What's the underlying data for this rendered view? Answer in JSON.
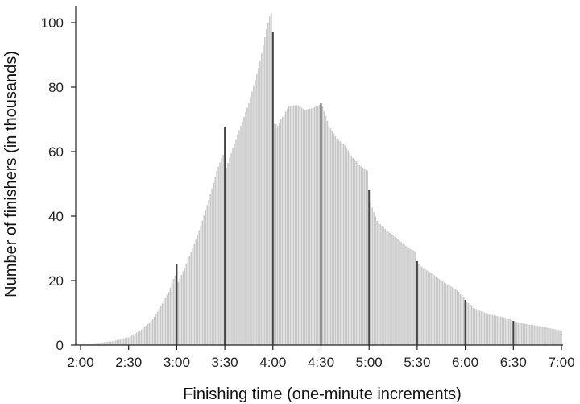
{
  "chart_data": {
    "type": "bar",
    "title": "",
    "xlabel": "Finishing time (one-minute increments)",
    "ylabel": "Number of finishers (in thousands)",
    "x_ticks": [
      "2:00",
      "2:30",
      "3:00",
      "3:30",
      "4:00",
      "4:30",
      "5:00",
      "5:30",
      "6:00",
      "6:30",
      "7:00"
    ],
    "y_ticks": [
      "0",
      "20",
      "40",
      "60",
      "80",
      "100"
    ],
    "ylim": [
      0,
      105
    ],
    "xlim_minutes": [
      120,
      420
    ],
    "grid": false,
    "bar_color": "#c8c8c8",
    "highlight_color": "#444444",
    "series": [
      {
        "x_minutes": [
          120,
          130,
          140,
          150,
          155,
          160,
          165,
          170,
          175,
          178,
          179,
          180,
          181,
          185,
          190,
          195,
          200,
          205,
          208,
          209,
          210,
          211,
          215,
          220,
          225,
          230,
          232,
          234,
          236,
          238,
          239,
          240,
          241,
          243,
          245,
          250,
          255,
          260,
          265,
          269,
          270,
          271,
          275,
          280,
          285,
          290,
          295,
          299,
          300,
          301,
          305,
          310,
          315,
          320,
          325,
          329,
          330,
          331,
          335,
          340,
          345,
          350,
          355,
          359,
          360,
          361,
          365,
          370,
          375,
          380,
          385,
          389,
          390,
          391,
          395,
          400,
          405,
          410,
          415,
          419,
          420
        ],
        "values_thousands": [
          0.2,
          0.6,
          1.2,
          2.4,
          3.8,
          5.5,
          8.0,
          12.0,
          16.5,
          20.5,
          21.5,
          25.0,
          19.5,
          24.0,
          30.0,
          37.0,
          45.0,
          54.0,
          58.0,
          59.0,
          67.5,
          55.0,
          61.0,
          68.0,
          75.0,
          84.0,
          88.0,
          93.0,
          98.0,
          102.0,
          103.0,
          97.0,
          69.0,
          68.0,
          70.0,
          74.0,
          74.5,
          73.0,
          73.5,
          74.5,
          75.0,
          74.0,
          68.0,
          64.0,
          62.0,
          58.0,
          55.5,
          54.0,
          48.0,
          44.0,
          38.5,
          36.0,
          34.0,
          32.0,
          30.0,
          29.0,
          26.0,
          25.0,
          23.5,
          22.0,
          20.0,
          18.5,
          17.0,
          15.0,
          14.0,
          13.5,
          11.5,
          10.5,
          9.5,
          9.0,
          8.5,
          7.8,
          7.5,
          7.3,
          6.8,
          6.3,
          6.0,
          5.5,
          5.0,
          4.6,
          4.4
        ],
        "highlight_minutes": [
          180,
          210,
          240,
          270,
          300,
          330,
          360,
          390
        ]
      }
    ]
  }
}
